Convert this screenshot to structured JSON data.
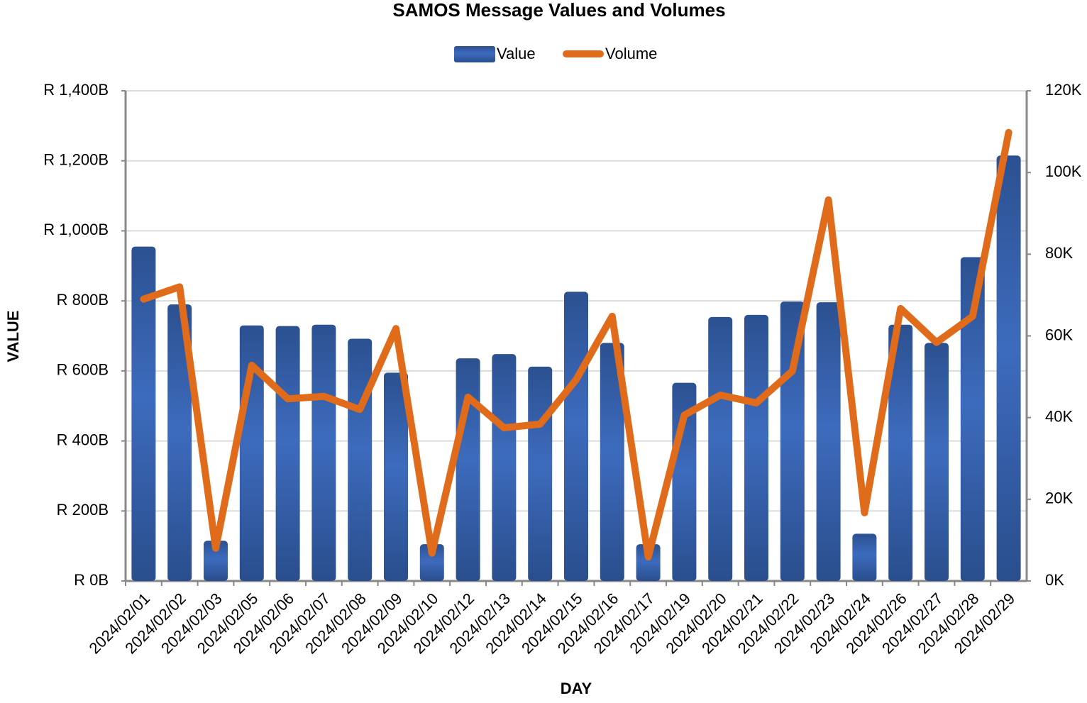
{
  "chart_data": {
    "type": "bar_line",
    "title": "SAMOS Message Values and Volumes",
    "xlabel": "DAY",
    "ylabel": "VALUE",
    "categories": [
      "2024/02/01",
      "2024/02/02",
      "2024/02/03",
      "2024/02/05",
      "2024/02/06",
      "2024/02/07",
      "2024/02/08",
      "2024/02/09",
      "2024/02/10",
      "2024/02/12",
      "2024/02/13",
      "2024/02/14",
      "2024/02/15",
      "2024/02/16",
      "2024/02/17",
      "2024/02/19",
      "2024/02/20",
      "2024/02/21",
      "2024/02/22",
      "2024/02/23",
      "2024/02/24",
      "2024/02/26",
      "2024/02/27",
      "2024/02/28",
      "2024/02/29"
    ],
    "series": [
      {
        "name": "Value",
        "type": "bar",
        "color": "#3461ad",
        "values": [
          955,
          790,
          115,
          730,
          728,
          732,
          692,
          595,
          105,
          636,
          648,
          612,
          826,
          680,
          105,
          566,
          754,
          760,
          798,
          796,
          135,
          732,
          680,
          925,
          1215
        ]
      },
      {
        "name": "Volume",
        "type": "line",
        "axis": "y2",
        "color": "#e06b1a",
        "values": [
          69,
          72,
          8,
          52.8,
          44.6,
          45.2,
          42,
          61.8,
          6.8,
          45,
          37.5,
          38.4,
          49.3,
          64.8,
          5.9,
          40.6,
          45.5,
          43.6,
          51.4,
          93.3,
          16.7,
          66.7,
          58.4,
          64.8,
          109.8
        ]
      }
    ],
    "ylim": [
      0,
      1400
    ],
    "yticks": [
      {
        "value": 0,
        "label": "R 0B"
      },
      {
        "value": 200,
        "label": "R 200B"
      },
      {
        "value": 400,
        "label": "R 400B"
      },
      {
        "value": 600,
        "label": "R 600B"
      },
      {
        "value": 800,
        "label": "R 800B"
      },
      {
        "value": 1000,
        "label": "R 1,000B"
      },
      {
        "value": 1200,
        "label": "R 1,200B"
      },
      {
        "value": 1400,
        "label": "R 1,400B"
      }
    ],
    "y2lim": [
      0,
      120
    ],
    "y2ticks": [
      {
        "value": 0,
        "label": "0K"
      },
      {
        "value": 20,
        "label": "20K"
      },
      {
        "value": 40,
        "label": "40K"
      },
      {
        "value": 60,
        "label": "60K"
      },
      {
        "value": 80,
        "label": "80K"
      },
      {
        "value": 100,
        "label": "100K"
      },
      {
        "value": 120,
        "label": "120K"
      }
    ],
    "grid": true,
    "legend": "top"
  }
}
